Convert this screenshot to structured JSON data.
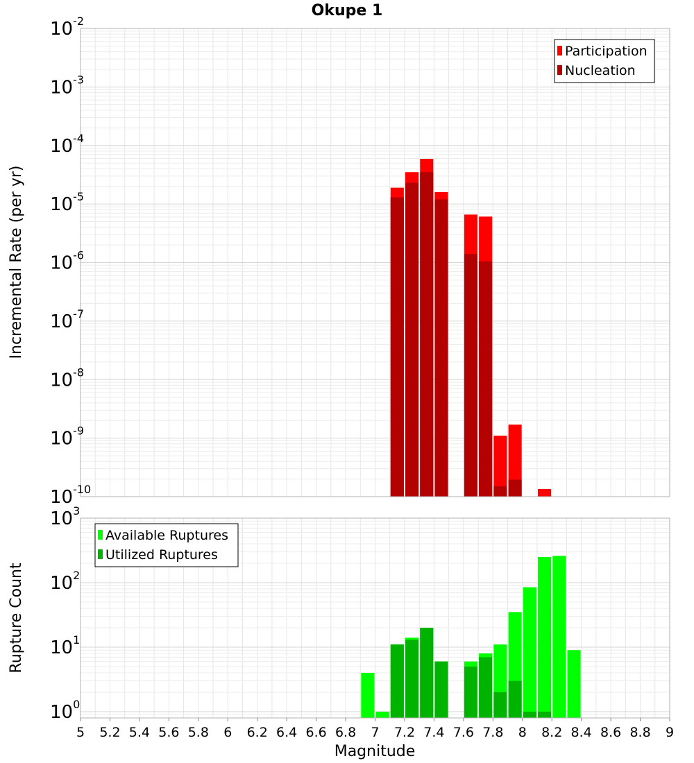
{
  "title": "Okupe 1",
  "colors": {
    "participation": "#ff0000",
    "nucleation": "#b30000",
    "available": "#00ff00",
    "utilized": "#00b300",
    "grid": "#e6e6e6",
    "frame": "#b0b0b0"
  },
  "chart_data": [
    {
      "type": "bar",
      "id": "rate",
      "title": "Okupe 1",
      "xlabel": "Magnitude",
      "ylabel": "Incremental Rate (per yr)",
      "yscale": "log",
      "xlim": [
        5,
        9
      ],
      "ylim": [
        1e-10,
        0.01
      ],
      "bar_width": 0.09,
      "y_tick_exponents": [
        "-10",
        "-9",
        "-8",
        "-7",
        "-6",
        "-5",
        "-4",
        "-3",
        "-2"
      ],
      "y_tick_base": "10",
      "legend": {
        "position": "top-right",
        "entries": [
          "Participation",
          "Nucleation"
        ]
      },
      "series": [
        {
          "name": "Participation",
          "color": "#ff0000",
          "x": [
            7.15,
            7.25,
            7.35,
            7.45,
            7.65,
            7.75,
            7.85,
            7.95,
            8.15
          ],
          "values": [
            1.9e-05,
            3.5e-05,
            5.9e-05,
            1.6e-05,
            6.6e-06,
            6.1e-06,
            1.1e-09,
            1.7e-09,
            1.35e-10
          ]
        },
        {
          "name": "Nucleation",
          "color": "#b30000",
          "x": [
            7.15,
            7.25,
            7.35,
            7.45,
            7.65,
            7.75,
            7.85,
            7.95
          ],
          "values": [
            1.3e-05,
            2.3e-05,
            3.5e-05,
            1.2e-05,
            1.4e-06,
            1.05e-06,
            1.5e-10,
            1.95e-10
          ]
        }
      ]
    },
    {
      "type": "bar",
      "id": "count",
      "xlabel": "Magnitude",
      "ylabel": "Rupture Count",
      "yscale": "log",
      "xlim": [
        5,
        9
      ],
      "ylim": [
        0.8,
        1000
      ],
      "bar_width": 0.09,
      "y_tick_exponents": [
        "0",
        "1",
        "2",
        "3"
      ],
      "y_tick_base": "10",
      "x_ticks": [
        "5",
        "5.2",
        "5.4",
        "5.6",
        "5.8",
        "6",
        "6.2",
        "6.4",
        "6.6",
        "6.8",
        "7",
        "7.2",
        "7.4",
        "7.6",
        "7.8",
        "8",
        "8.2",
        "8.4",
        "8.6",
        "8.8",
        "9"
      ],
      "legend": {
        "position": "top-left",
        "entries": [
          "Available Ruptures",
          "Utilized Ruptures"
        ]
      },
      "series": [
        {
          "name": "Available Ruptures",
          "color": "#00ff00",
          "x": [
            6.95,
            7.05,
            7.15,
            7.25,
            7.35,
            7.45,
            7.65,
            7.75,
            7.85,
            7.95,
            8.05,
            8.15,
            8.25,
            8.35
          ],
          "values": [
            4,
            1,
            11,
            14,
            20,
            6,
            6,
            8,
            11,
            35,
            85,
            250,
            260,
            9
          ]
        },
        {
          "name": "Utilized Ruptures",
          "color": "#00b300",
          "x": [
            7.15,
            7.25,
            7.35,
            7.45,
            7.65,
            7.75,
            7.85,
            7.95,
            8.05,
            8.15
          ],
          "values": [
            11,
            13,
            20,
            6,
            5,
            7,
            2,
            3,
            1,
            1
          ]
        }
      ]
    }
  ]
}
